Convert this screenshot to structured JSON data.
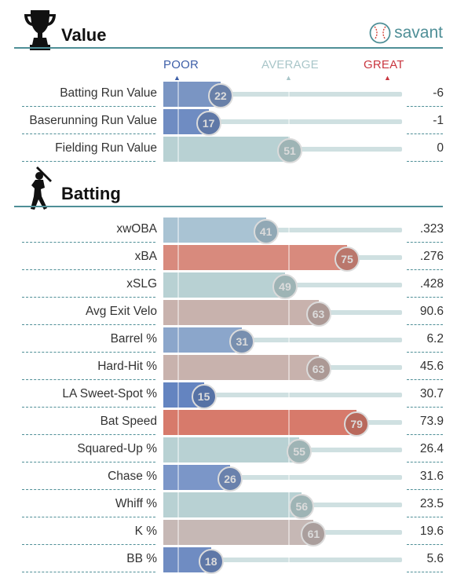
{
  "brand": {
    "name": "savant",
    "icon": "baseball-icon"
  },
  "value_section": {
    "title": "Value",
    "icon": "trophy-icon",
    "scale": {
      "poor": "POOR",
      "average": "AVERAGE",
      "great": "GREAT"
    },
    "rows": [
      {
        "label": "Batting Run Value",
        "percentile": 22,
        "value": "-6",
        "color": "#7a95c3"
      },
      {
        "label": "Baserunning Run Value",
        "percentile": 17,
        "value": "-1",
        "color": "#6f8cc2"
      },
      {
        "label": "Fielding Run Value",
        "percentile": 51,
        "value": "0",
        "color": "#b8d1d3"
      }
    ]
  },
  "batting_section": {
    "title": "Batting",
    "icon": "batter-icon",
    "rows": [
      {
        "label": "xwOBA",
        "percentile": 41,
        "value": ".323",
        "color": "#a9c3d3"
      },
      {
        "label": "xBA",
        "percentile": 75,
        "value": ".276",
        "color": "#d88a7d"
      },
      {
        "label": "xSLG",
        "percentile": 49,
        "value": ".428",
        "color": "#b8d1d3"
      },
      {
        "label": "Avg Exit Velo",
        "percentile": 63,
        "value": "90.6",
        "color": "#c8b2ad"
      },
      {
        "label": "Barrel %",
        "percentile": 31,
        "value": "6.2",
        "color": "#8ba6cb"
      },
      {
        "label": "Hard-Hit %",
        "percentile": 63,
        "value": "45.6",
        "color": "#c8b2ad"
      },
      {
        "label": "LA Sweet-Spot %",
        "percentile": 15,
        "value": "30.7",
        "color": "#6484c0"
      },
      {
        "label": "Bat Speed",
        "percentile": 79,
        "value": "73.9",
        "color": "#d77a6b"
      },
      {
        "label": "Squared-Up %",
        "percentile": 55,
        "value": "26.4",
        "color": "#b8d1d3"
      },
      {
        "label": "Chase %",
        "percentile": 26,
        "value": "31.6",
        "color": "#7b96c8"
      },
      {
        "label": "Whiff %",
        "percentile": 56,
        "value": "23.5",
        "color": "#b8d1d3"
      },
      {
        "label": "K %",
        "percentile": 61,
        "value": "19.6",
        "color": "#c6b8b5"
      },
      {
        "label": "BB %",
        "percentile": 18,
        "value": "5.6",
        "color": "#6f8cc2"
      }
    ]
  }
}
